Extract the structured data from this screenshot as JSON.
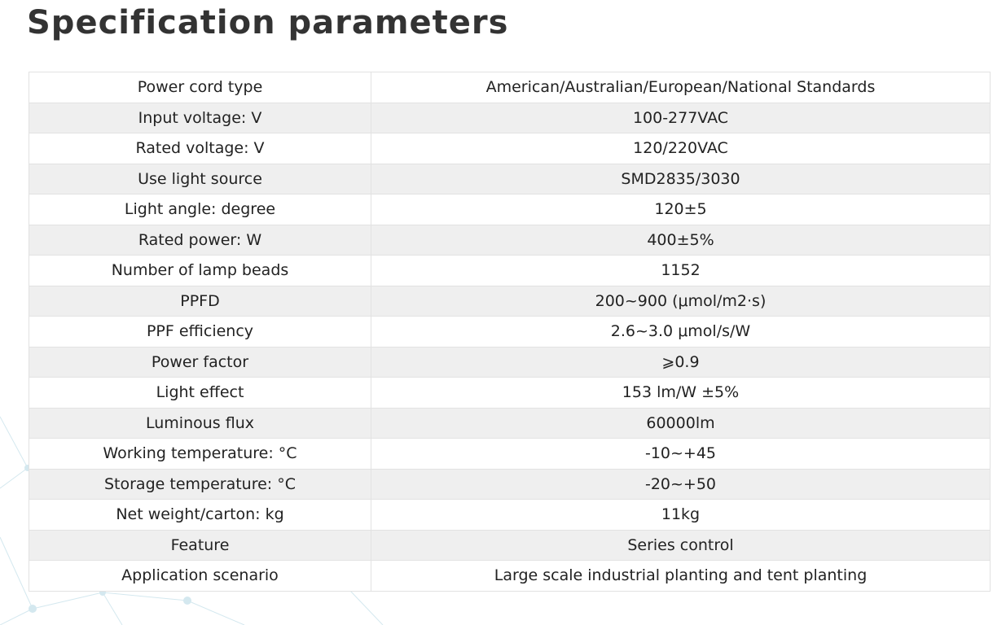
{
  "page": {
    "title": "Specification parameters"
  },
  "colors": {
    "title": "#333333",
    "text": "#222222",
    "row_alt": "#efefef",
    "row_base": "#ffffff",
    "border": "#e2e2e2",
    "decor": "#cfe6ee"
  },
  "spec_table": {
    "rows": [
      {
        "label": "Power cord type",
        "value": "American/Australian/European/National Standards"
      },
      {
        "label": "Input voltage: V",
        "value": "100-277VAC"
      },
      {
        "label": "Rated voltage: V",
        "value": "120/220VAC"
      },
      {
        "label": "Use light source",
        "value": "SMD2835/3030"
      },
      {
        "label": "Light angle: degree",
        "value": "120±5"
      },
      {
        "label": "Rated power: W",
        "value": "400±5%"
      },
      {
        "label": "Number of lamp beads",
        "value": "1152"
      },
      {
        "label": "PPFD",
        "value": "200~900 (μmol/m2·s)"
      },
      {
        "label": "PPF efficiency",
        "value": "2.6~3.0 μmol/s/W"
      },
      {
        "label": "Power factor",
        "value": "⩾0.9"
      },
      {
        "label": "Light effect",
        "value": "153 lm/W ±5%"
      },
      {
        "label": "Luminous flux",
        "value": "60000lm"
      },
      {
        "label": "Working temperature: °C",
        "value": "-10~+45"
      },
      {
        "label": "Storage temperature: °C",
        "value": "-20~+50"
      },
      {
        "label": "Net weight/carton: kg",
        "value": "11kg"
      },
      {
        "label": "Feature",
        "value": "Series control"
      },
      {
        "label": "Application scenario",
        "value": "Large scale industrial planting and tent planting"
      }
    ]
  }
}
